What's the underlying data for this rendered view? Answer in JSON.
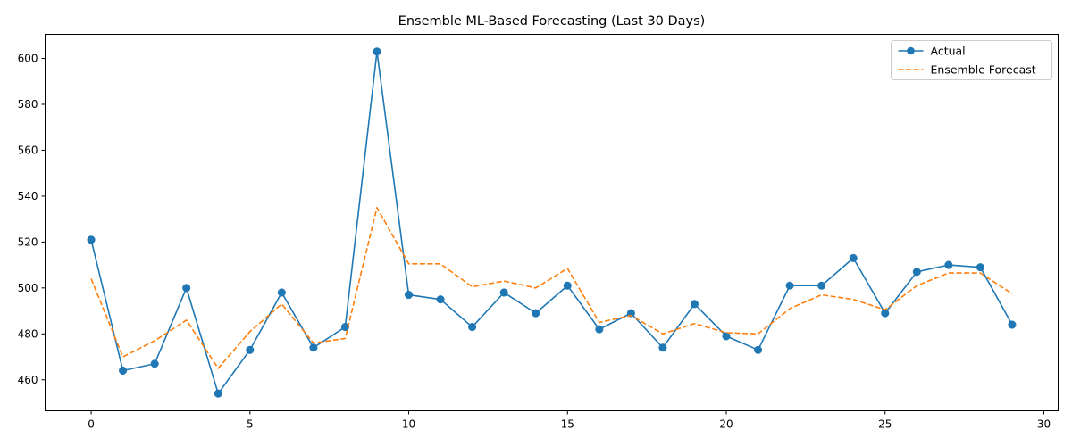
{
  "chart_data": {
    "type": "line",
    "title": "Ensemble ML-Based Forecasting (Last 30 Days)",
    "xlabel": "",
    "ylabel": "",
    "xlim": [
      -1.45,
      30.45
    ],
    "ylim": [
      446.5,
      610.5
    ],
    "xticks": [
      0,
      5,
      10,
      15,
      20,
      25,
      30
    ],
    "yticks": [
      460,
      480,
      500,
      520,
      540,
      560,
      580,
      600
    ],
    "grid": false,
    "legend_position": "top-right",
    "x": [
      0,
      1,
      2,
      3,
      4,
      5,
      6,
      7,
      8,
      9,
      10,
      11,
      12,
      13,
      14,
      15,
      16,
      17,
      18,
      19,
      20,
      21,
      22,
      23,
      24,
      25,
      26,
      27,
      28,
      29
    ],
    "series": [
      {
        "name": "Actual",
        "style": "solid-with-markers",
        "color": "#1f77b4",
        "values": [
          521,
          464,
          467,
          500,
          454,
          473,
          498,
          474,
          483,
          603,
          497,
          495,
          483,
          498,
          489,
          501,
          482,
          489,
          474,
          493,
          479,
          473,
          501,
          501,
          513,
          489,
          507,
          510,
          509,
          484
        ]
      },
      {
        "name": "Ensemble Forecast",
        "style": "dashed",
        "color": "#ff7f0e",
        "values": [
          504,
          470,
          477,
          486,
          465,
          481,
          493,
          476,
          478,
          535,
          510.5,
          510.5,
          500.5,
          503,
          500,
          508.5,
          485,
          488,
          480,
          484.5,
          480.5,
          480,
          491,
          497,
          495,
          490.5,
          501,
          506.5,
          506.5,
          497.5
        ]
      }
    ]
  }
}
